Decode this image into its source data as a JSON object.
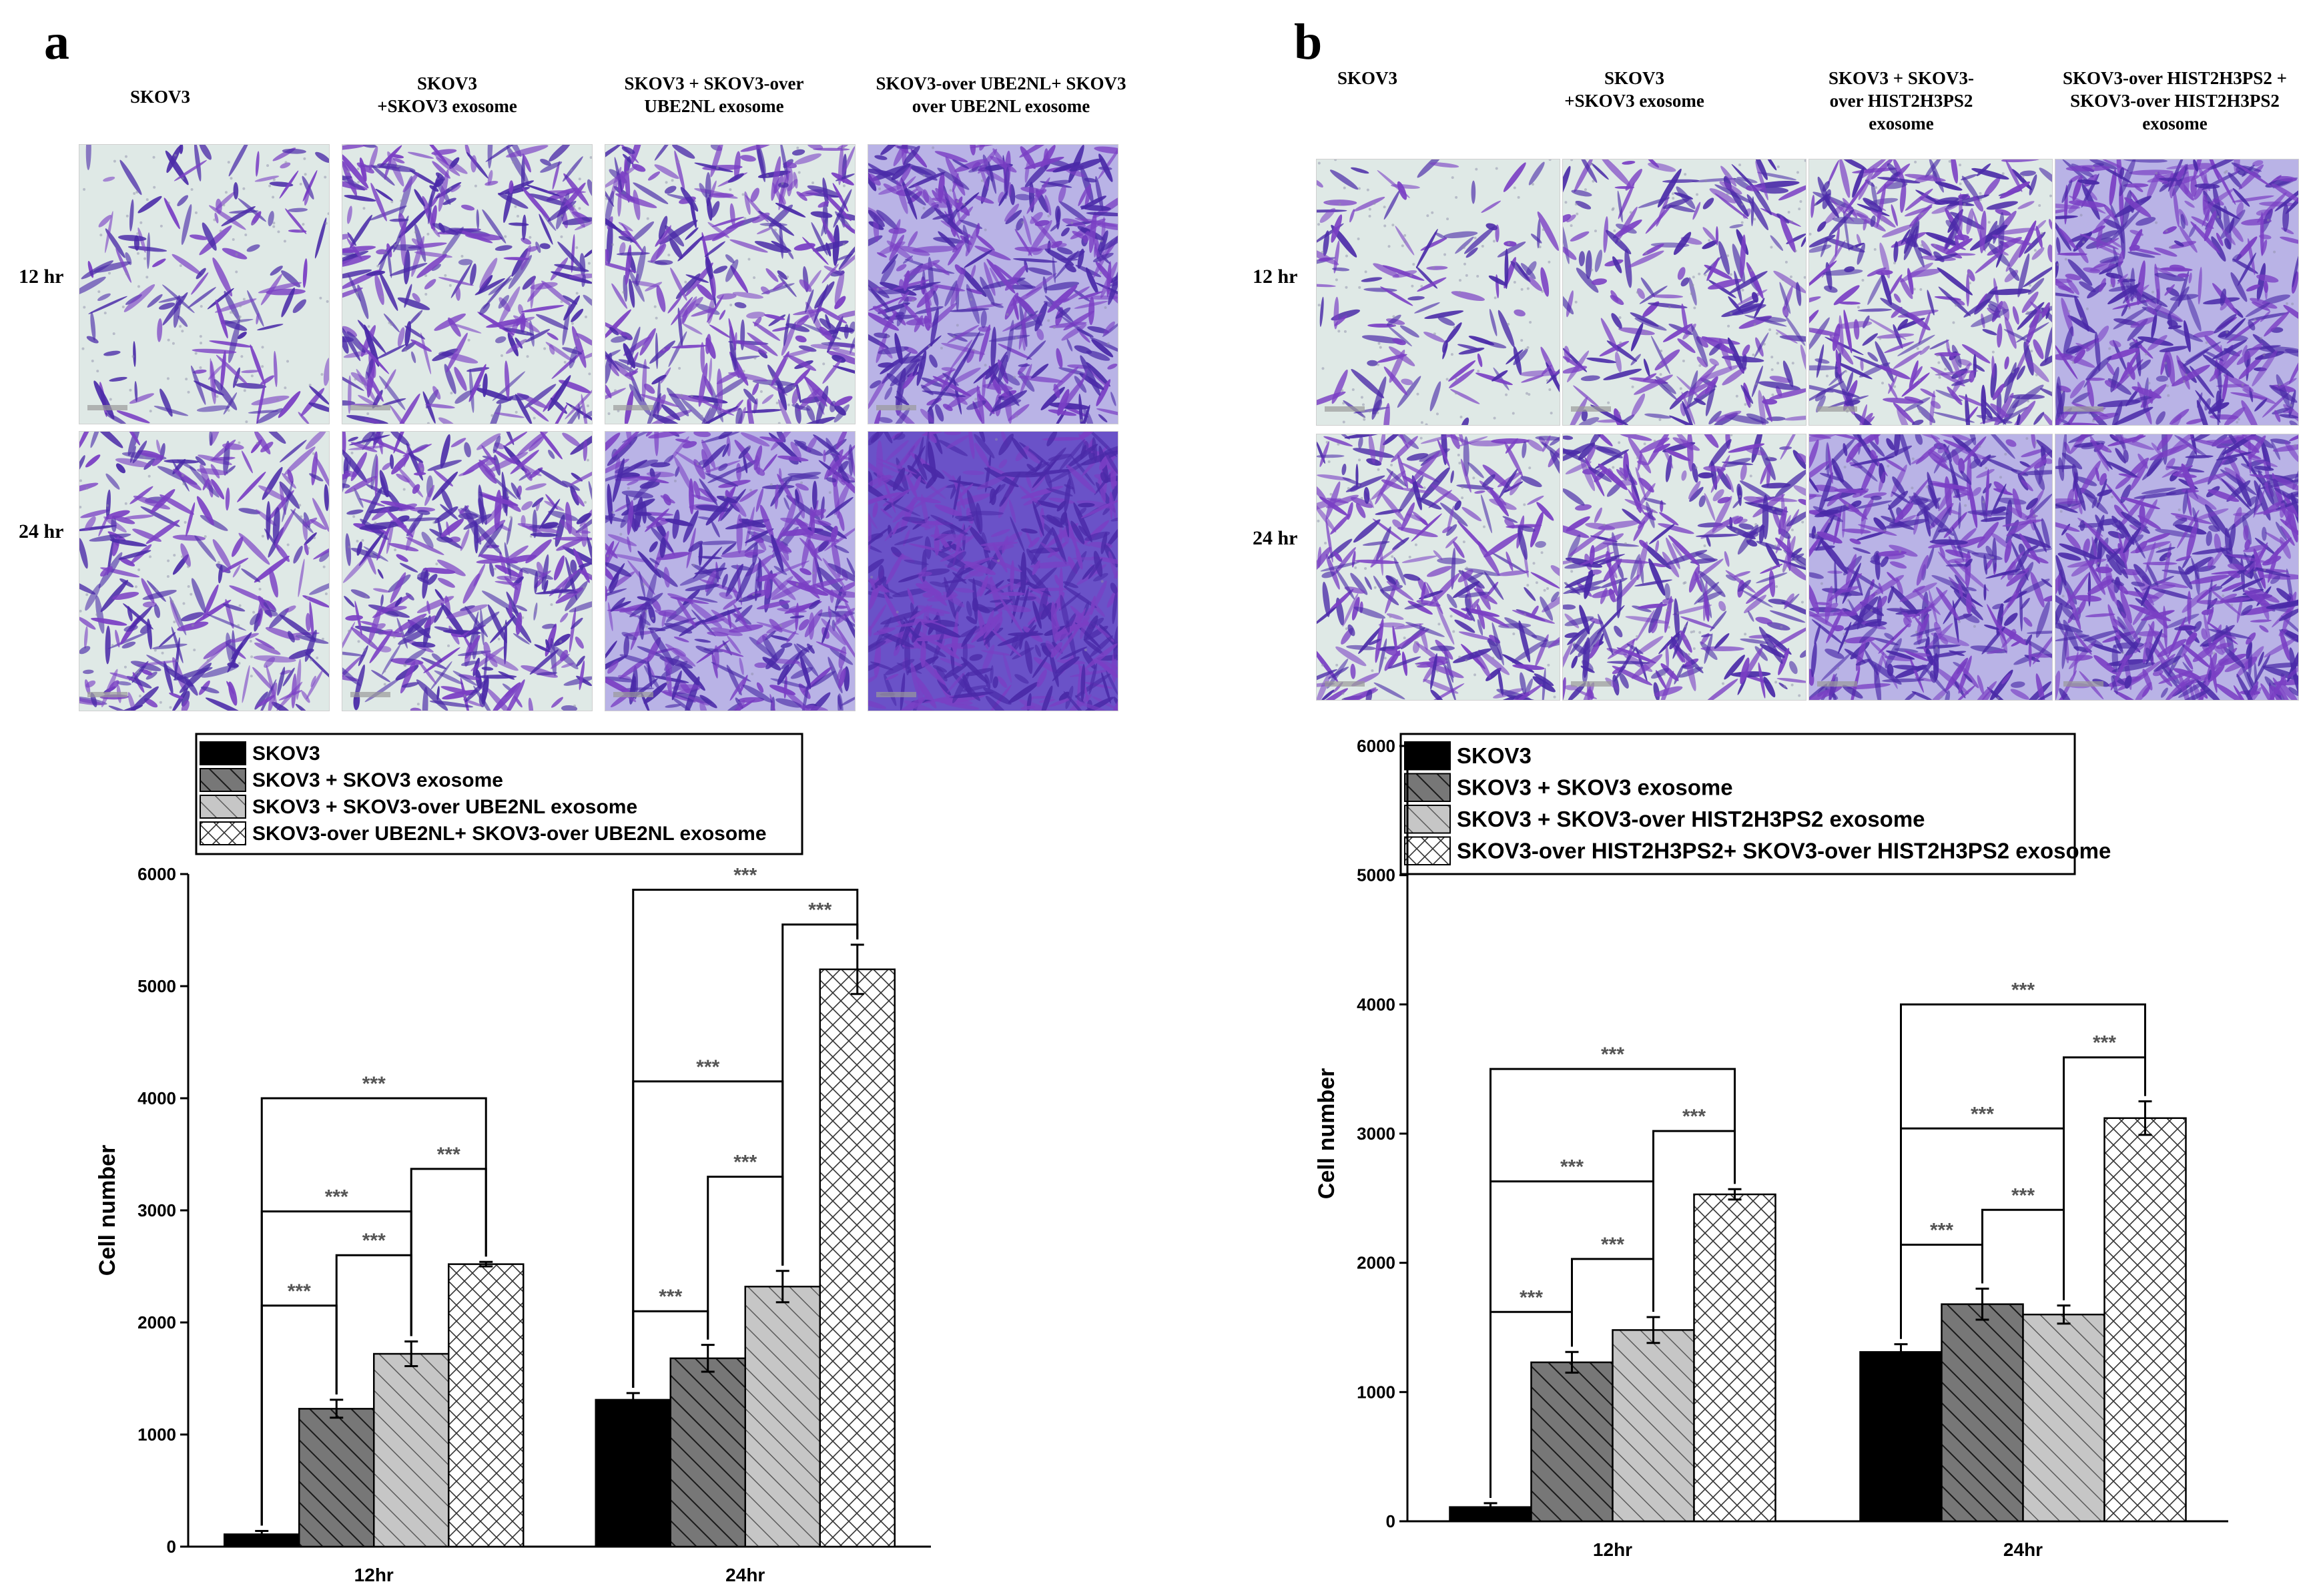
{
  "panels": {
    "a": {
      "letter": "a",
      "columns": [
        "SKOV3",
        "SKOV3\n+SKOV3 exosome",
        "SKOV3 + SKOV3-over\nUBE2NL exosome",
        "SKOV3-over UBE2NL+ SKOV3\nover UBE2NL exosome"
      ],
      "rows": [
        "12 hr",
        "24 hr"
      ]
    },
    "b": {
      "letter": "b",
      "columns": [
        "SKOV3",
        "SKOV3\n+SKOV3 exosome",
        "SKOV3 + SKOV3-\nover HIST2H3PS2\nexosome",
        "SKOV3-over HIST2H3PS2 +\nSKOV3-over HIST2H3PS2\nexosome"
      ],
      "rows": [
        "12 hr",
        "24 hr"
      ]
    }
  },
  "colors": {
    "stain": "#7a3fc4",
    "stain_dark": "#4a2aa8",
    "background_light": "#dfe9e6",
    "bar_black": "#000000",
    "bar_dark": "#777777",
    "bar_light": "#c6c6c6",
    "bar_white": "#ffffff"
  },
  "chart_data": [
    {
      "type": "bar",
      "panel": "a",
      "title": "",
      "xlabel": "",
      "ylabel": "Cell number",
      "ylim": [
        0,
        6000
      ],
      "yticks": [
        "0",
        "1000",
        "2000",
        "3000",
        "4000",
        "5000",
        "6000"
      ],
      "categories": [
        "12hr",
        "24hr"
      ],
      "series": [
        {
          "name": "SKOV3",
          "values": [
            110,
            1310
          ],
          "errors": [
            30,
            60
          ],
          "fill": "solid"
        },
        {
          "name": "SKOV3 + SKOV3 exosome",
          "values": [
            1230,
            1680
          ],
          "errors": [
            80,
            120
          ],
          "fill": "dark-hatch"
        },
        {
          "name": "SKOV3 + SKOV3-over UBE2NL exosome",
          "values": [
            1720,
            2320
          ],
          "errors": [
            110,
            140
          ],
          "fill": "light-hatch"
        },
        {
          "name": "SKOV3-over UBE2NL+ SKOV3-over UBE2NL exosome",
          "values": [
            2520,
            5150
          ],
          "errors": [
            20,
            220
          ],
          "fill": "cross-hatch"
        }
      ],
      "significance": [
        {
          "category": 0,
          "from": 0,
          "to": 1,
          "level": 2150,
          "label": "***"
        },
        {
          "category": 0,
          "from": 1,
          "to": 2,
          "level": 2600,
          "label": "***"
        },
        {
          "category": 0,
          "from": 0,
          "to": 2,
          "level": 2990,
          "label": "***"
        },
        {
          "category": 0,
          "from": 2,
          "to": 3,
          "level": 3370,
          "label": "***"
        },
        {
          "category": 0,
          "from": 0,
          "to": 3,
          "level": 4000,
          "label": "***"
        },
        {
          "category": 1,
          "from": 0,
          "to": 1,
          "level": 2100,
          "label": "***"
        },
        {
          "category": 1,
          "from": 1,
          "to": 2,
          "level": 3300,
          "label": "***"
        },
        {
          "category": 1,
          "from": 0,
          "to": 2,
          "level": 4150,
          "label": "***"
        },
        {
          "category": 1,
          "from": 2,
          "to": 3,
          "level": 5550,
          "label": "***"
        },
        {
          "category": 1,
          "from": 0,
          "to": 3,
          "level": 5860,
          "label": "***"
        }
      ]
    },
    {
      "type": "bar",
      "panel": "b",
      "title": "",
      "xlabel": "",
      "ylabel": "Cell number",
      "ylim": [
        0,
        6000
      ],
      "yticks": [
        "0",
        "1000",
        "2000",
        "3000",
        "4000",
        "5000",
        "6000"
      ],
      "categories": [
        "12hr",
        "24hr"
      ],
      "series": [
        {
          "name": "SKOV3",
          "values": [
            110,
            1310
          ],
          "errors": [
            30,
            60
          ],
          "fill": "solid"
        },
        {
          "name": "SKOV3 + SKOV3 exosome",
          "values": [
            1230,
            1680
          ],
          "errors": [
            80,
            120
          ],
          "fill": "dark-hatch"
        },
        {
          "name": "SKOV3 + SKOV3-over HIST2H3PS2 exosome",
          "values": [
            1480,
            1600
          ],
          "errors": [
            100,
            70
          ],
          "fill": "light-hatch"
        },
        {
          "name": "SKOV3-over HIST2H3PS2+ SKOV3-over HIST2H3PS2 exosome",
          "values": [
            2530,
            3120
          ],
          "errors": [
            40,
            130
          ],
          "fill": "cross-hatch"
        }
      ],
      "significance": [
        {
          "category": 0,
          "from": 0,
          "to": 1,
          "level": 1620,
          "label": "***"
        },
        {
          "category": 0,
          "from": 1,
          "to": 2,
          "level": 2030,
          "label": "***"
        },
        {
          "category": 0,
          "from": 0,
          "to": 2,
          "level": 2630,
          "label": "***"
        },
        {
          "category": 0,
          "from": 2,
          "to": 3,
          "level": 3020,
          "label": "***"
        },
        {
          "category": 0,
          "from": 0,
          "to": 3,
          "level": 3500,
          "label": "***"
        },
        {
          "category": 1,
          "from": 0,
          "to": 1,
          "level": 2140,
          "label": "***"
        },
        {
          "category": 1,
          "from": 1,
          "to": 2,
          "level": 2410,
          "label": "***"
        },
        {
          "category": 1,
          "from": 0,
          "to": 2,
          "level": 3040,
          "label": "***"
        },
        {
          "category": 1,
          "from": 2,
          "to": 3,
          "level": 3590,
          "label": "***"
        },
        {
          "category": 1,
          "from": 0,
          "to": 3,
          "level": 4000,
          "label": "***"
        }
      ]
    }
  ]
}
